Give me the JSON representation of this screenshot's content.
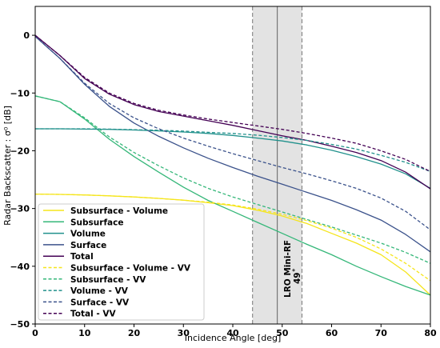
{
  "chart_data": {
    "type": "line",
    "xlabel": "Incidence Angle [deg]",
    "ylabel": "Radar Backscatter : σ⁰ [dB]",
    "xlim": [
      0,
      80
    ],
    "ylim": [
      -50,
      5
    ],
    "xticks": [
      "0",
      "10",
      "20",
      "30",
      "40",
      "50",
      "60",
      "70",
      "80"
    ],
    "yticks": [
      "0",
      "−10",
      "−20",
      "−30",
      "−40",
      "−50"
    ],
    "legend_position": "lower-left",
    "annotation": {
      "text_line1": "LRO Mini-RF",
      "text_line2": "49˚",
      "center_x": 49,
      "band": [
        44,
        54
      ]
    },
    "x": [
      0,
      5,
      10,
      15,
      20,
      25,
      30,
      35,
      40,
      45,
      50,
      55,
      60,
      65,
      70,
      75,
      80
    ],
    "series": [
      {
        "name": "Subsurface - Volume",
        "color": "#f5e51c",
        "dash": false,
        "values": [
          -27.5,
          -27.55,
          -27.65,
          -27.8,
          -28.0,
          -28.25,
          -28.55,
          -29.0,
          -29.5,
          -30.3,
          -31.3,
          -32.6,
          -34.3,
          -36.0,
          -38.0,
          -41.0,
          -45.0
        ]
      },
      {
        "name": "Subsurface",
        "color": "#35b779",
        "dash": false,
        "values": [
          -10.5,
          -11.5,
          -14.5,
          -18.0,
          -21.0,
          -23.7,
          -26.3,
          -28.6,
          -30.5,
          -32.4,
          -34.3,
          -36.2,
          -38.0,
          -40.0,
          -41.8,
          -43.5,
          -45.0
        ]
      },
      {
        "name": "Volume",
        "color": "#21918c",
        "dash": false,
        "values": [
          -16.2,
          -16.2,
          -16.25,
          -16.3,
          -16.4,
          -16.55,
          -16.75,
          -17.0,
          -17.35,
          -17.8,
          -18.3,
          -19.0,
          -19.9,
          -21.0,
          -22.3,
          -24.0,
          -26.5
        ]
      },
      {
        "name": "Surface",
        "color": "#3b528b",
        "dash": false,
        "values": [
          -0.2,
          -4.0,
          -8.5,
          -12.3,
          -15.2,
          -17.5,
          -19.5,
          -21.3,
          -22.9,
          -24.4,
          -25.8,
          -27.2,
          -28.6,
          -30.2,
          -32.0,
          -34.5,
          -37.5
        ]
      },
      {
        "name": "Total",
        "color": "#440154",
        "dash": false,
        "values": [
          0.0,
          -3.5,
          -7.5,
          -10.2,
          -12.0,
          -13.2,
          -14.0,
          -14.8,
          -15.6,
          -16.5,
          -17.4,
          -18.2,
          -19.2,
          -20.3,
          -21.7,
          -23.7,
          -26.6
        ]
      },
      {
        "name": "Subsurface - Volume - VV",
        "color": "#f5e51c",
        "dash": true,
        "values": [
          -27.5,
          -27.55,
          -27.65,
          -27.8,
          -28.0,
          -28.25,
          -28.55,
          -28.9,
          -29.4,
          -30.1,
          -31.0,
          -32.1,
          -33.4,
          -35.0,
          -37.0,
          -39.5,
          -42.5
        ]
      },
      {
        "name": "Subsurface - VV",
        "color": "#35b779",
        "dash": true,
        "values": [
          -10.5,
          -11.5,
          -14.3,
          -17.6,
          -20.3,
          -22.6,
          -24.7,
          -26.5,
          -28.0,
          -29.3,
          -30.6,
          -31.9,
          -33.2,
          -34.6,
          -36.0,
          -37.6,
          -39.5
        ]
      },
      {
        "name": "Volume - VV",
        "color": "#21918c",
        "dash": true,
        "values": [
          -16.2,
          -16.2,
          -16.2,
          -16.25,
          -16.35,
          -16.45,
          -16.6,
          -16.8,
          -17.0,
          -17.3,
          -17.7,
          -18.2,
          -18.9,
          -19.7,
          -20.8,
          -22.0,
          -23.6
        ]
      },
      {
        "name": "Surface - VV",
        "color": "#3b528b",
        "dash": true,
        "values": [
          -0.2,
          -4.0,
          -8.3,
          -11.8,
          -14.3,
          -16.2,
          -17.8,
          -19.2,
          -20.5,
          -21.7,
          -22.9,
          -24.0,
          -25.2,
          -26.5,
          -28.2,
          -30.5,
          -33.7
        ]
      },
      {
        "name": "Total - VV",
        "color": "#440154",
        "dash": true,
        "values": [
          0.0,
          -3.5,
          -7.3,
          -10.0,
          -11.8,
          -13.0,
          -13.8,
          -14.5,
          -15.1,
          -15.7,
          -16.3,
          -17.0,
          -17.8,
          -18.7,
          -20.0,
          -21.5,
          -23.6
        ]
      }
    ]
  }
}
